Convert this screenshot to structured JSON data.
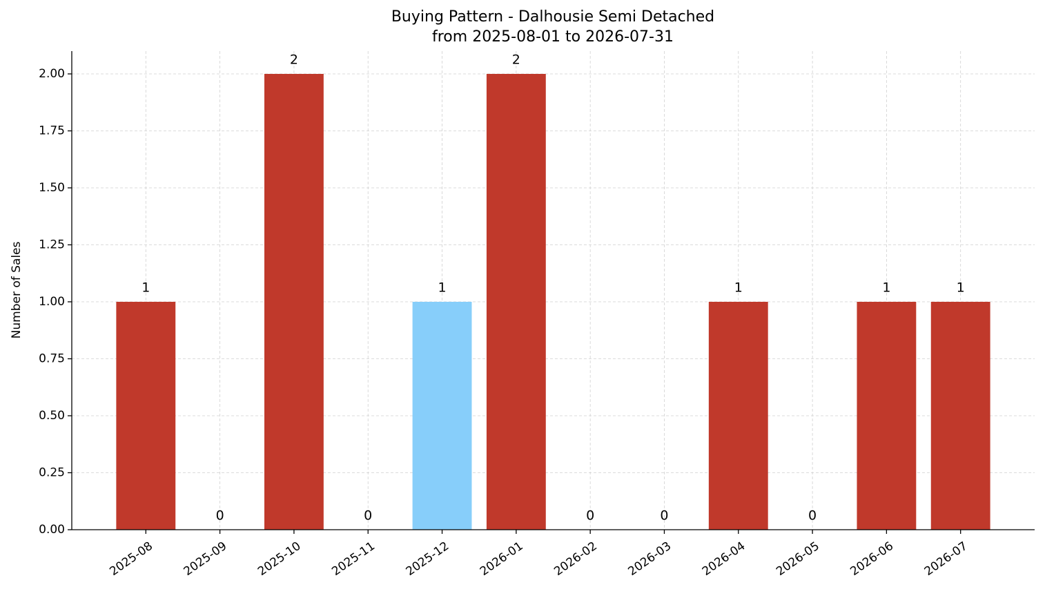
{
  "chart_data": {
    "type": "bar",
    "title": "Buying Pattern - Dalhousie Semi Detached",
    "subtitle": "from 2025-08-01 to 2026-07-31",
    "y_label": "Number of Sales",
    "categories": [
      "2025-08",
      "2025-09",
      "2025-10",
      "2025-11",
      "2025-12",
      "2026-01",
      "2026-02",
      "2026-03",
      "2026-04",
      "2026-05",
      "2026-06",
      "2026-07"
    ],
    "values": [
      1,
      0,
      2,
      0,
      1,
      2,
      0,
      0,
      1,
      0,
      1,
      1
    ],
    "colors": [
      "#c0392b",
      "#c0392b",
      "#c0392b",
      "#c0392b",
      "#87cefa",
      "#c0392b",
      "#c0392b",
      "#c0392b",
      "#c0392b",
      "#c0392b",
      "#c0392b",
      "#c0392b"
    ],
    "ylim": [
      0,
      2.1
    ],
    "yticks": [
      {
        "value": 0,
        "label": "0.00"
      },
      {
        "value": 0.25,
        "label": "0.25"
      },
      {
        "value": 0.5,
        "label": "0.50"
      },
      {
        "value": 0.75,
        "label": "0.75"
      },
      {
        "value": 1,
        "label": "1.00"
      },
      {
        "value": 1.25,
        "label": "1.25"
      },
      {
        "value": 1.5,
        "label": "1.50"
      },
      {
        "value": 1.75,
        "label": "1.75"
      },
      {
        "value": 2,
        "label": "2.00"
      }
    ],
    "grid": true
  }
}
